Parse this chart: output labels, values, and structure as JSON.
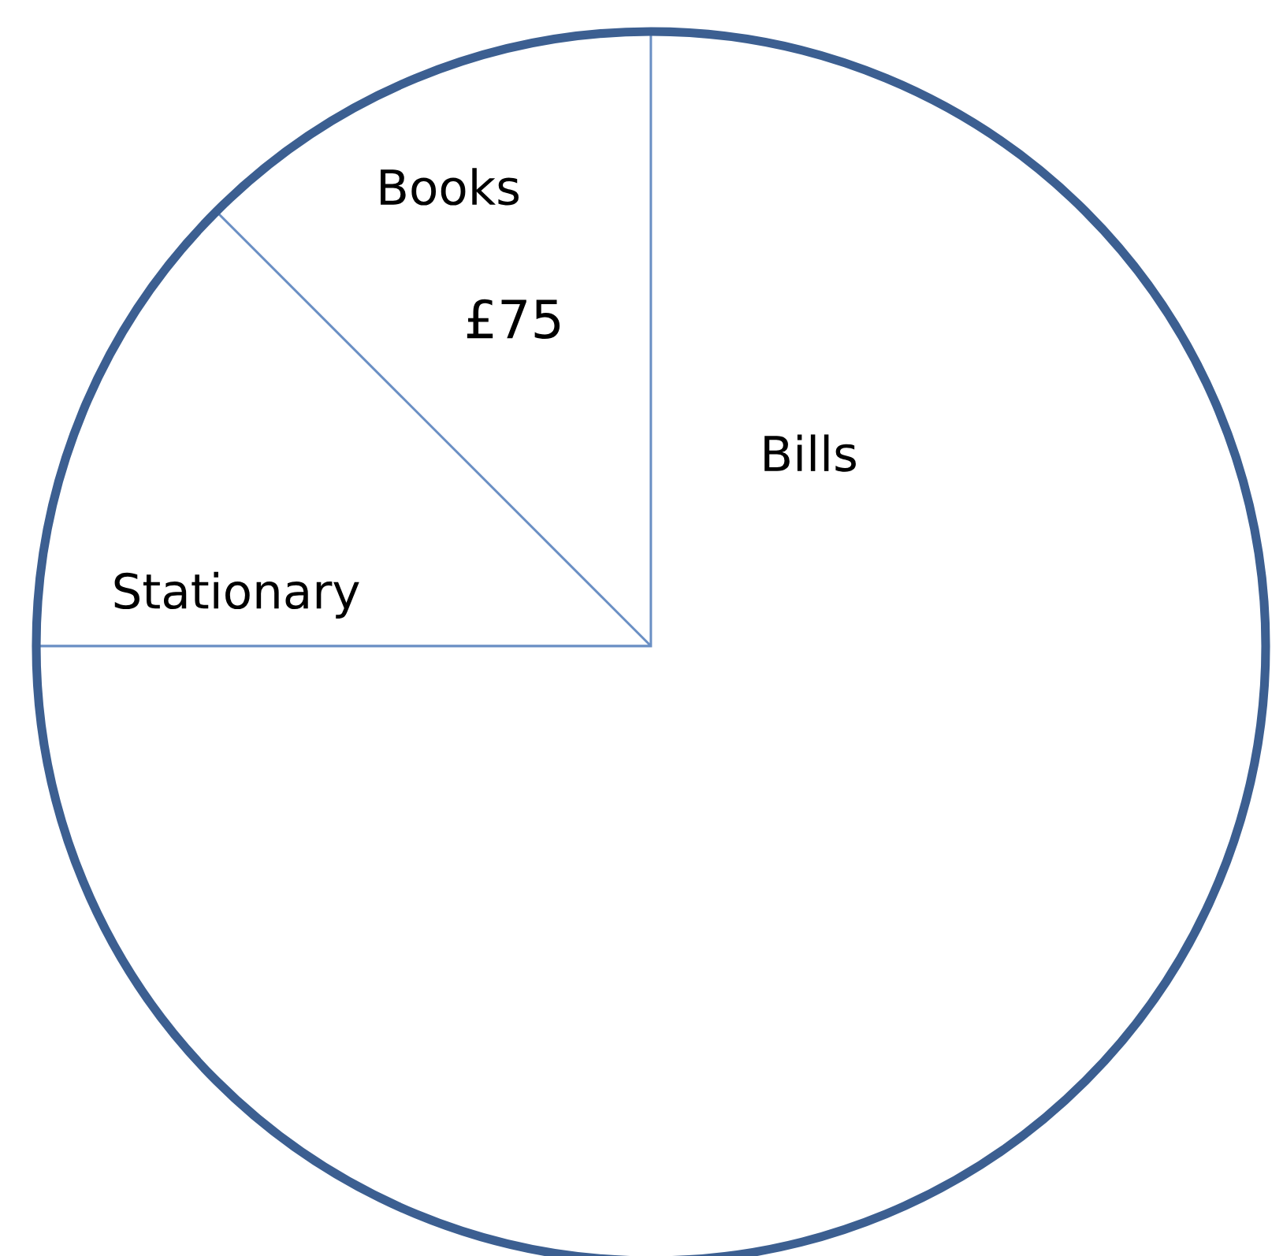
{
  "chart_data": {
    "type": "pie",
    "categories": [
      "Books",
      "Stationary",
      "Bills"
    ],
    "values": [
      75,
      75,
      450
    ],
    "colors": [
      "#ffffff",
      "#ffffff",
      "#ffffff"
    ],
    "value_labels": [
      "£75",
      null,
      null
    ]
  }
}
